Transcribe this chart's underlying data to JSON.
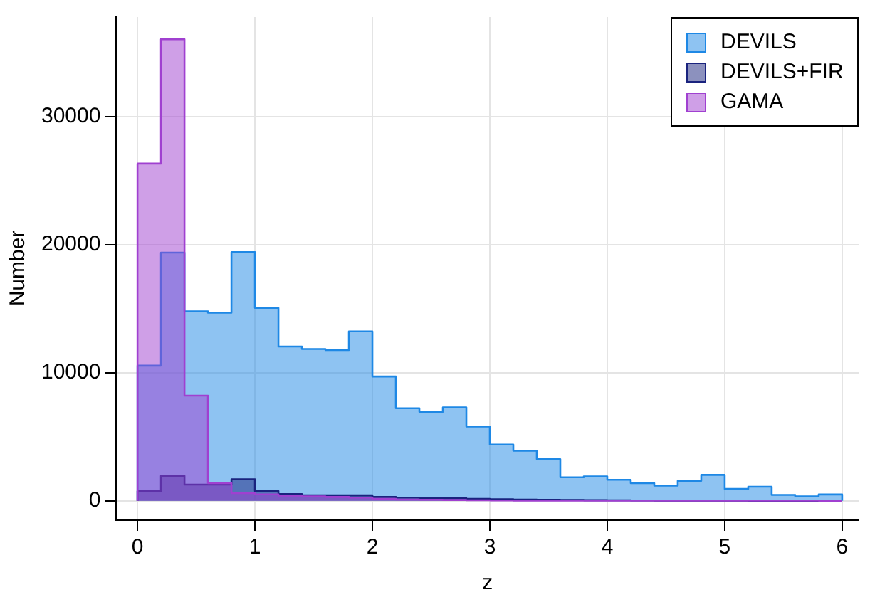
{
  "chart_data": {
    "type": "histogram",
    "xlabel": "z",
    "ylabel": "Number",
    "bins": [
      0,
      0.2,
      0.4,
      0.6,
      0.8,
      1,
      1.2,
      1.4,
      1.6,
      1.8,
      2,
      2.2,
      2.4,
      2.6,
      2.8,
      3,
      3.2,
      3.4,
      3.6,
      3.8,
      4,
      4.2,
      4.4,
      4.6,
      4.8,
      5,
      5.2,
      5.4,
      5.6,
      5.8,
      6
    ],
    "series": [
      {
        "name": "DEVILS",
        "color": "#1e88e5",
        "values": [
          10550,
          19380,
          14790,
          14680,
          19420,
          15060,
          12040,
          11850,
          11770,
          13220,
          9700,
          7220,
          6950,
          7290,
          5800,
          4390,
          3900,
          3250,
          1830,
          1900,
          1640,
          1380,
          1180,
          1560,
          2020,
          920,
          1100,
          460,
          340,
          490
        ]
      },
      {
        "name": "DEVILS+FIR",
        "color": "#1a237e",
        "values": [
          760,
          1950,
          1260,
          1260,
          1670,
          760,
          530,
          420,
          420,
          420,
          300,
          250,
          200,
          200,
          150,
          120,
          100,
          80,
          60,
          50,
          40,
          30,
          20,
          20,
          10,
          10,
          0,
          0,
          0,
          0
        ]
      },
      {
        "name": "GAMA",
        "color": "#a040d0",
        "values": [
          26330,
          36040,
          8210,
          1380,
          600,
          500,
          400,
          350,
          300,
          250,
          150,
          100,
          80,
          60,
          40,
          30,
          20,
          20,
          10,
          10,
          10,
          10,
          10,
          10,
          10,
          10,
          10,
          10,
          10,
          0
        ]
      }
    ],
    "xlim": [
      -0.18,
      6.14
    ],
    "xticks": [
      0,
      1,
      2,
      3,
      4,
      5,
      6
    ],
    "ylim": [
      -1460,
      37770
    ],
    "yticks": [
      0,
      10000,
      20000,
      30000
    ],
    "grid": true,
    "legend": "top right"
  }
}
